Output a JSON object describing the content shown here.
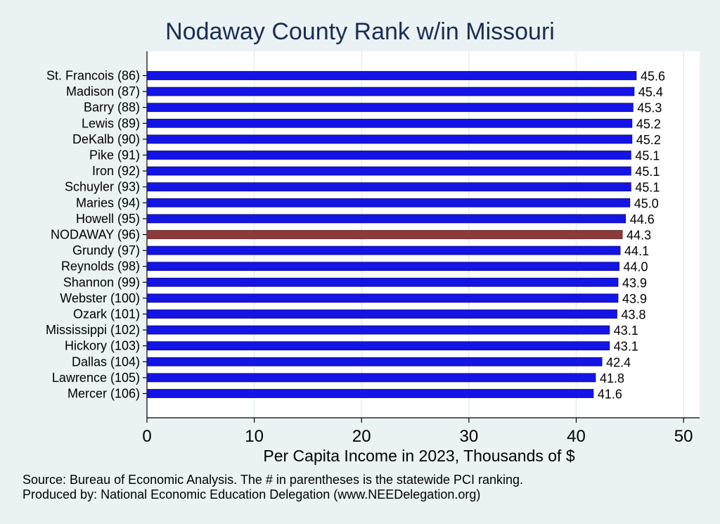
{
  "chart_data": {
    "type": "bar",
    "orientation": "horizontal",
    "title": "Nodaway County Rank w/in Missouri",
    "xlabel": "Per Capita Income in 2023, Thousands of $",
    "xlim": [
      0,
      51.5
    ],
    "xticks": [
      0,
      10,
      20,
      30,
      40,
      50
    ],
    "grid": true,
    "categories": [
      "St. Francois (86)",
      "Madison (87)",
      "Barry (88)",
      "Lewis (89)",
      "DeKalb (90)",
      "Pike (91)",
      "Iron (92)",
      "Schuyler (93)",
      "Maries (94)",
      "Howell (95)",
      "NODAWAY (96)",
      "Grundy (97)",
      "Reynolds (98)",
      "Shannon (99)",
      "Webster (100)",
      "Ozark (101)",
      "Mississippi (102)",
      "Hickory (103)",
      "Dallas (104)",
      "Lawrence (105)",
      "Mercer (106)"
    ],
    "values": [
      45.6,
      45.4,
      45.3,
      45.2,
      45.2,
      45.1,
      45.1,
      45.1,
      45.0,
      44.6,
      44.3,
      44.1,
      44.0,
      43.9,
      43.9,
      43.8,
      43.1,
      43.1,
      42.4,
      41.8,
      41.6
    ],
    "value_labels": [
      "45.6",
      "45.4",
      "45.3",
      "45.2",
      "45.2",
      "45.1",
      "45.1",
      "45.1",
      "45.0",
      "44.6",
      "44.3",
      "44.1",
      "44.0",
      "43.9",
      "43.9",
      "43.8",
      "43.1",
      "43.1",
      "42.4",
      "41.8",
      "41.6"
    ],
    "highlight": "NODAWAY (96)",
    "colors": {
      "bar": "#1414e6",
      "highlight": "#8c3a3a",
      "background": "#eaf2f3",
      "plot_background": "#ffffff",
      "title": "#1a2d52",
      "grid": "#e4eef0"
    }
  },
  "notes": {
    "source": "Source: Bureau of Economic Analysis. The # in parentheses is the statewide PCI ranking.",
    "produced_by": "Produced by: National Economic Education Delegation (www.NEEDelegation.org)"
  }
}
